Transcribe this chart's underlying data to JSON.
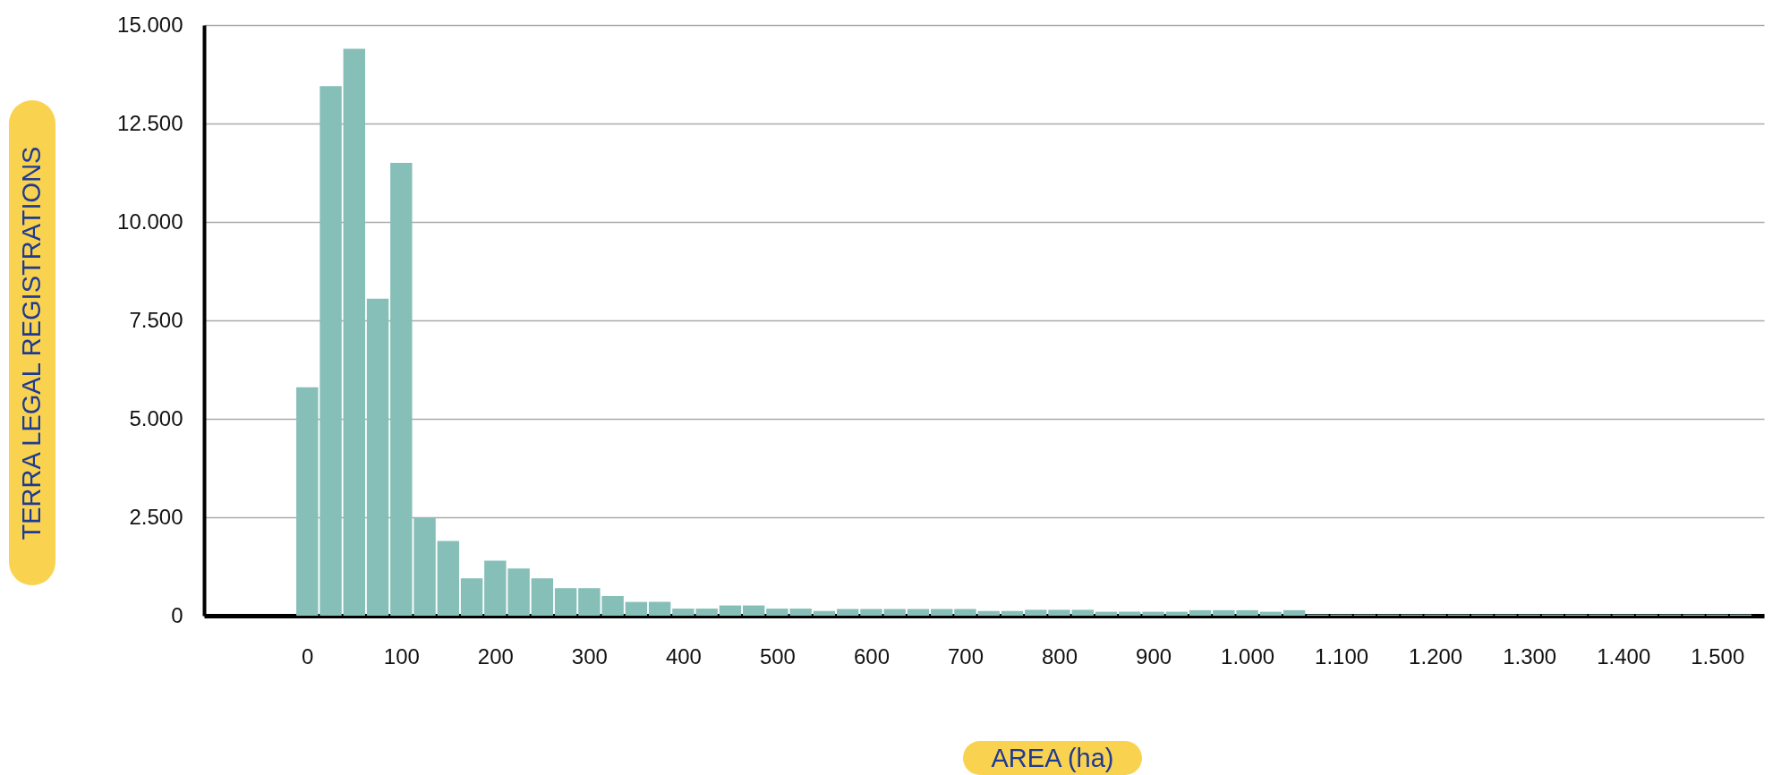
{
  "chart_data": {
    "type": "bar",
    "xlabel": "AREA (ha)",
    "ylabel": "TERRA LEGAL REGISTRATIONS",
    "color": "#86bfb7",
    "grid": "y",
    "x": [
      0,
      25,
      50,
      75,
      100,
      125,
      150,
      175,
      200,
      225,
      250,
      275,
      300,
      325,
      350,
      375,
      400,
      425,
      450,
      475,
      500,
      525,
      550,
      575,
      600,
      625,
      650,
      675,
      700,
      725,
      750,
      775,
      800,
      825,
      850,
      875,
      900,
      925,
      950,
      975,
      1000,
      1025,
      1050,
      1075,
      1100,
      1125,
      1150,
      1175,
      1200,
      1225,
      1250,
      1275,
      1300,
      1325,
      1350,
      1375,
      1400,
      1425,
      1450,
      1475,
      1500,
      1525
    ],
    "values": [
      5800,
      13450,
      14400,
      8050,
      11500,
      2500,
      1900,
      950,
      1400,
      1200,
      950,
      700,
      700,
      500,
      350,
      350,
      180,
      180,
      260,
      260,
      180,
      180,
      120,
      170,
      170,
      170,
      170,
      170,
      170,
      120,
      120,
      150,
      150,
      150,
      100,
      100,
      100,
      100,
      140,
      140,
      140,
      100,
      140,
      30,
      30,
      30,
      30,
      30,
      30,
      30,
      30,
      30,
      30,
      30,
      30,
      30,
      30,
      30,
      30,
      30,
      30,
      30
    ],
    "xlim": [
      -105,
      1545
    ],
    "ylim": [
      0,
      15000
    ],
    "xticks": [
      0,
      100,
      200,
      300,
      400,
      500,
      600,
      700,
      800,
      900,
      {
        "value": 1000,
        "label": "1.000"
      },
      {
        "value": 1100,
        "label": "1.100"
      },
      {
        "value": 1200,
        "label": "1.200"
      },
      {
        "value": 1300,
        "label": "1.300"
      },
      {
        "value": 1400,
        "label": "1.400"
      },
      {
        "value": 1500,
        "label": "1.500"
      }
    ],
    "yticks": [
      0,
      {
        "value": 2500,
        "label": "2.500"
      },
      {
        "value": 5000,
        "label": "5.000"
      },
      {
        "value": 7500,
        "label": "7.500"
      },
      {
        "value": 10000,
        "label": "10.000"
      },
      {
        "value": 12500,
        "label": "12.500"
      },
      {
        "value": 15000,
        "label": "15.000"
      }
    ]
  }
}
